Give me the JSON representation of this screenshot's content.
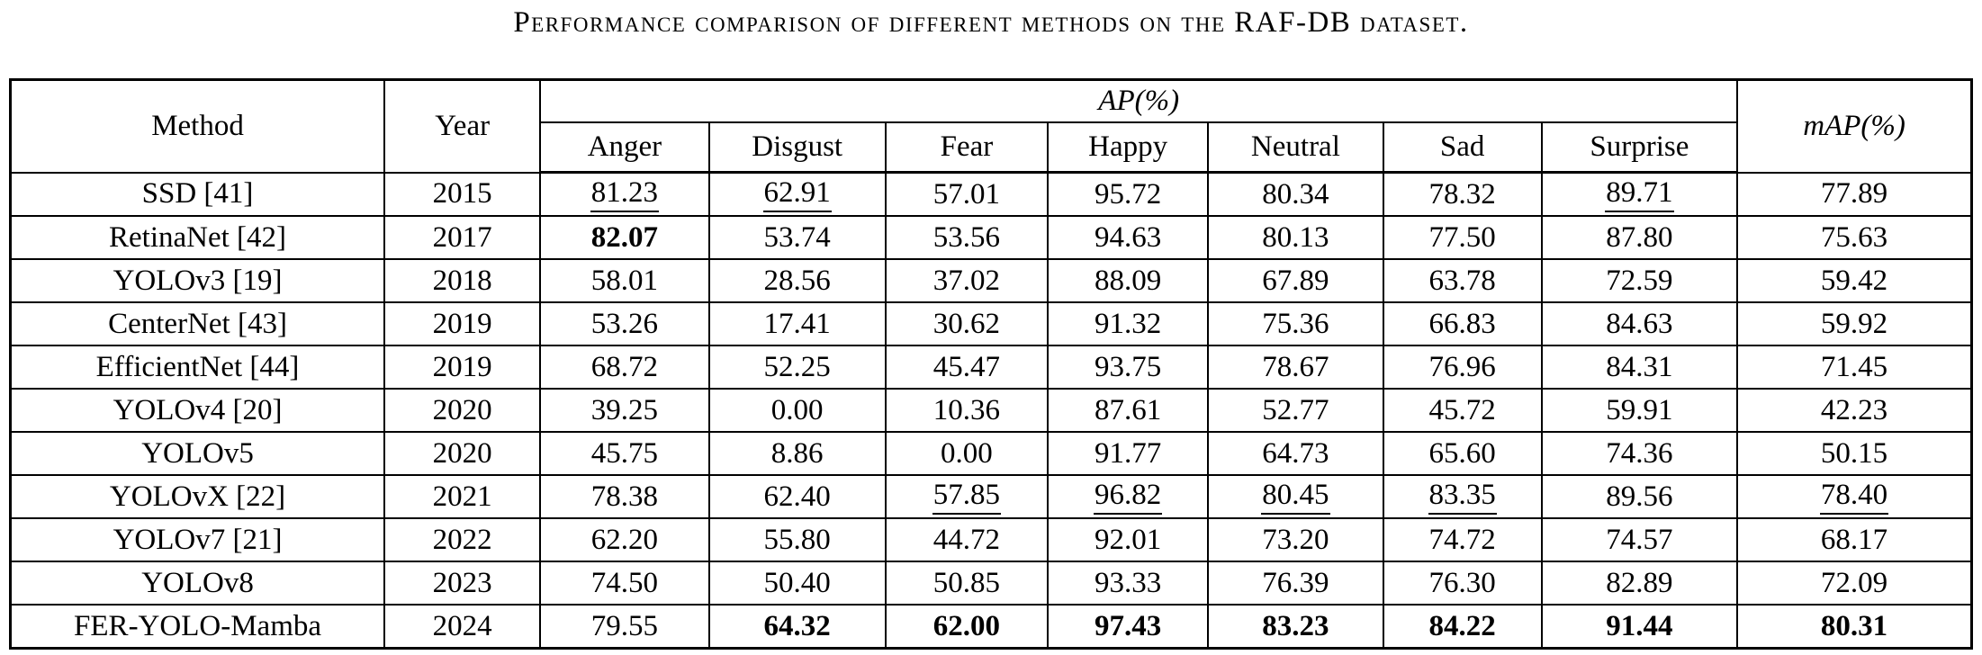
{
  "title": "Performance comparison of different methods on the RAF-DB dataset.",
  "colors": {
    "background": "#ffffff",
    "text": "#000000",
    "border": "#000000"
  },
  "table": {
    "col_method": "Method",
    "col_year": "Year",
    "col_ap_group": "AP(%)",
    "col_map": "mAP(%)",
    "emotions": [
      "Anger",
      "Disgust",
      "Fear",
      "Happy",
      "Neutral",
      "Sad",
      "Surprise"
    ],
    "rows": [
      {
        "method": "SSD [41]",
        "year": "2015",
        "cells": [
          {
            "t": "81.23",
            "fmt": "underline"
          },
          {
            "t": "62.91",
            "fmt": "underline"
          },
          {
            "t": "57.01"
          },
          {
            "t": "95.72"
          },
          {
            "t": "80.34"
          },
          {
            "t": "78.32"
          },
          {
            "t": "89.71",
            "fmt": "underline"
          },
          {
            "t": "77.89"
          }
        ]
      },
      {
        "method": "RetinaNet [42]",
        "year": "2017",
        "cells": [
          {
            "t": "82.07",
            "fmt": "bold"
          },
          {
            "t": "53.74"
          },
          {
            "t": "53.56"
          },
          {
            "t": "94.63"
          },
          {
            "t": "80.13"
          },
          {
            "t": "77.50"
          },
          {
            "t": "87.80"
          },
          {
            "t": "75.63"
          }
        ]
      },
      {
        "method": "YOLOv3 [19]",
        "year": "2018",
        "cells": [
          {
            "t": "58.01"
          },
          {
            "t": "28.56"
          },
          {
            "t": "37.02"
          },
          {
            "t": "88.09"
          },
          {
            "t": "67.89"
          },
          {
            "t": "63.78"
          },
          {
            "t": "72.59"
          },
          {
            "t": "59.42"
          }
        ]
      },
      {
        "method": "CenterNet [43]",
        "year": "2019",
        "cells": [
          {
            "t": "53.26"
          },
          {
            "t": "17.41"
          },
          {
            "t": "30.62"
          },
          {
            "t": "91.32"
          },
          {
            "t": "75.36"
          },
          {
            "t": "66.83"
          },
          {
            "t": "84.63"
          },
          {
            "t": "59.92"
          }
        ]
      },
      {
        "method": "EfficientNet [44]",
        "year": "2019",
        "cells": [
          {
            "t": "68.72"
          },
          {
            "t": "52.25"
          },
          {
            "t": "45.47"
          },
          {
            "t": "93.75"
          },
          {
            "t": "78.67"
          },
          {
            "t": "76.96"
          },
          {
            "t": "84.31"
          },
          {
            "t": "71.45"
          }
        ]
      },
      {
        "method": "YOLOv4 [20]",
        "year": "2020",
        "cells": [
          {
            "t": "39.25"
          },
          {
            "t": "0.00"
          },
          {
            "t": "10.36"
          },
          {
            "t": "87.61"
          },
          {
            "t": "52.77"
          },
          {
            "t": "45.72"
          },
          {
            "t": "59.91"
          },
          {
            "t": "42.23"
          }
        ]
      },
      {
        "method": "YOLOv5",
        "year": "2020",
        "cells": [
          {
            "t": "45.75"
          },
          {
            "t": "8.86"
          },
          {
            "t": "0.00"
          },
          {
            "t": "91.77"
          },
          {
            "t": "64.73"
          },
          {
            "t": "65.60"
          },
          {
            "t": "74.36"
          },
          {
            "t": "50.15"
          }
        ]
      },
      {
        "method": "YOLOvX [22]",
        "year": "2021",
        "cells": [
          {
            "t": "78.38"
          },
          {
            "t": "62.40"
          },
          {
            "t": "57.85",
            "fmt": "underline"
          },
          {
            "t": "96.82",
            "fmt": "underline"
          },
          {
            "t": "80.45",
            "fmt": "underline"
          },
          {
            "t": "83.35",
            "fmt": "underline"
          },
          {
            "t": "89.56"
          },
          {
            "t": "78.40",
            "fmt": "underline"
          }
        ]
      },
      {
        "method": "YOLOv7 [21]",
        "year": "2022",
        "cells": [
          {
            "t": "62.20"
          },
          {
            "t": "55.80"
          },
          {
            "t": "44.72"
          },
          {
            "t": "92.01"
          },
          {
            "t": "73.20"
          },
          {
            "t": "74.72"
          },
          {
            "t": "74.57"
          },
          {
            "t": "68.17"
          }
        ]
      },
      {
        "method": "YOLOv8",
        "year": "2023",
        "cells": [
          {
            "t": "74.50"
          },
          {
            "t": "50.40"
          },
          {
            "t": "50.85"
          },
          {
            "t": "93.33"
          },
          {
            "t": "76.39"
          },
          {
            "t": "76.30"
          },
          {
            "t": "82.89"
          },
          {
            "t": "72.09"
          }
        ]
      },
      {
        "method": "FER-YOLO-Mamba",
        "year": "2024",
        "cells": [
          {
            "t": "79.55"
          },
          {
            "t": "64.32",
            "fmt": "bold"
          },
          {
            "t": "62.00",
            "fmt": "bold"
          },
          {
            "t": "97.43",
            "fmt": "bold"
          },
          {
            "t": "83.23",
            "fmt": "bold"
          },
          {
            "t": "84.22",
            "fmt": "bold"
          },
          {
            "t": "91.44",
            "fmt": "bold"
          },
          {
            "t": "80.31",
            "fmt": "bold"
          }
        ]
      }
    ]
  }
}
